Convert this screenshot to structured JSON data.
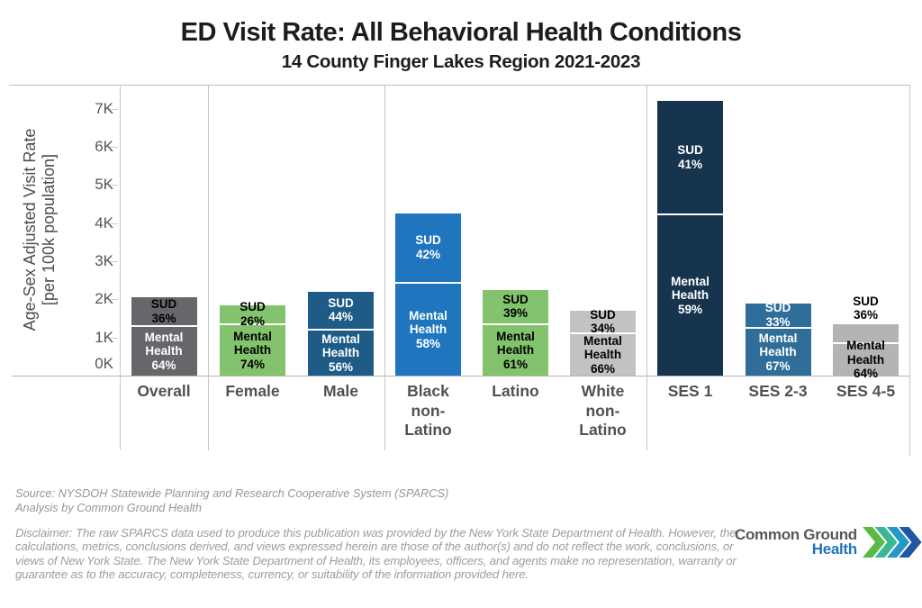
{
  "title": "ED Visit Rate: All Behavioral Health Conditions",
  "subtitle": "14 County Finger Lakes Region 2021-2023",
  "y_axis": {
    "title_line1": "Age-Sex Adjusted Visit Rate",
    "title_line2": "[per 100k population]",
    "ticks": [
      "0K",
      "1K",
      "2K",
      "3K",
      "4K",
      "5K",
      "6K",
      "7K"
    ]
  },
  "chart_data": {
    "type": "bar",
    "stacked": true,
    "unit": "visits per 100k population (age-sex adjusted)",
    "ylim": [
      0,
      7500
    ],
    "grid": false,
    "panels": [
      [
        "Overall"
      ],
      [
        "Female",
        "Male"
      ],
      [
        "Black non-Latino",
        "Latino",
        "White non-Latino"
      ],
      [
        "SES 1",
        "SES 2-3",
        "SES 4-5"
      ]
    ],
    "segment_names": {
      "top": "SUD",
      "bottom": "Mental Health"
    },
    "bars": [
      {
        "category": "Overall",
        "label_lines": [
          "Overall"
        ],
        "total_per_100k": 2050,
        "mental_health_pct": 64,
        "sud_pct": 36,
        "color": "#65676B",
        "sud_text_color": "#000000",
        "mh_text_color": "#FFFFFF",
        "sud_label_outside": false
      },
      {
        "category": "Female",
        "label_lines": [
          "Female"
        ],
        "total_per_100k": 1850,
        "mental_health_pct": 74,
        "sud_pct": 26,
        "color": "#83C36D",
        "sud_text_color": "#000000",
        "mh_text_color": "#000000",
        "sud_label_outside": false
      },
      {
        "category": "Male",
        "label_lines": [
          "Male"
        ],
        "total_per_100k": 2200,
        "mental_health_pct": 56,
        "sud_pct": 44,
        "color": "#1E5C87",
        "sud_text_color": "#FFFFFF",
        "mh_text_color": "#FFFFFF",
        "sud_label_outside": false
      },
      {
        "category": "Black non-Latino",
        "label_lines": [
          "Black",
          "non-",
          "Latino"
        ],
        "total_per_100k": 4250,
        "mental_health_pct": 58,
        "sud_pct": 42,
        "color": "#1F76BE",
        "sud_text_color": "#FFFFFF",
        "mh_text_color": "#FFFFFF",
        "sud_label_outside": false
      },
      {
        "category": "Latino",
        "label_lines": [
          "Latino"
        ],
        "total_per_100k": 2250,
        "mental_health_pct": 61,
        "sud_pct": 39,
        "color": "#83C36D",
        "sud_text_color": "#000000",
        "mh_text_color": "#000000",
        "sud_label_outside": false
      },
      {
        "category": "White non-Latino",
        "label_lines": [
          "White",
          "non-",
          "Latino"
        ],
        "total_per_100k": 1700,
        "mental_health_pct": 66,
        "sud_pct": 34,
        "color": "#C1C2C4",
        "sud_text_color": "#000000",
        "mh_text_color": "#000000",
        "sud_label_outside": false
      },
      {
        "category": "SES 1",
        "label_lines": [
          "SES 1"
        ],
        "total_per_100k": 7200,
        "mental_health_pct": 59,
        "sud_pct": 41,
        "color": "#17344E",
        "sud_text_color": "#FFFFFF",
        "mh_text_color": "#FFFFFF",
        "sud_label_outside": false
      },
      {
        "category": "SES 2-3",
        "label_lines": [
          "SES 2-3"
        ],
        "total_per_100k": 1900,
        "mental_health_pct": 67,
        "sud_pct": 33,
        "color": "#2E6E98",
        "sud_text_color": "#FFFFFF",
        "mh_text_color": "#FFFFFF",
        "sud_label_outside": false
      },
      {
        "category": "SES 4-5",
        "label_lines": [
          "SES 4-5"
        ],
        "total_per_100k": 1350,
        "mental_health_pct": 64,
        "sud_pct": 36,
        "color": "#B3B4B6",
        "sud_text_color": "#000000",
        "mh_text_color": "#000000",
        "sud_label_outside": true
      }
    ]
  },
  "footer": {
    "source_line1": "Source: NYSDOH Statewide Planning and Research Cooperative System (SPARCS)",
    "source_line2": "Analysis by Common Ground Health",
    "disclaimer": "Disclaimer: The raw SPARCS data used to produce this publication was provided by the New York State Department of Health. However, the calculations, metrics, conclusions derived, and views expressed herein are those of the author(s) and do not reflect the work, conclusions, or views of New York State. The New York State Department of Health, its employees, officers, and agents make no representation, warranty or guarantee as to the accuracy, completeness, currency, or suitability of the information provided here."
  },
  "logo": {
    "line1": "Common Ground",
    "line2": "Health",
    "chevron_colors": [
      "#5CB947",
      "#3CB794",
      "#2398C9",
      "#2156A3"
    ]
  }
}
